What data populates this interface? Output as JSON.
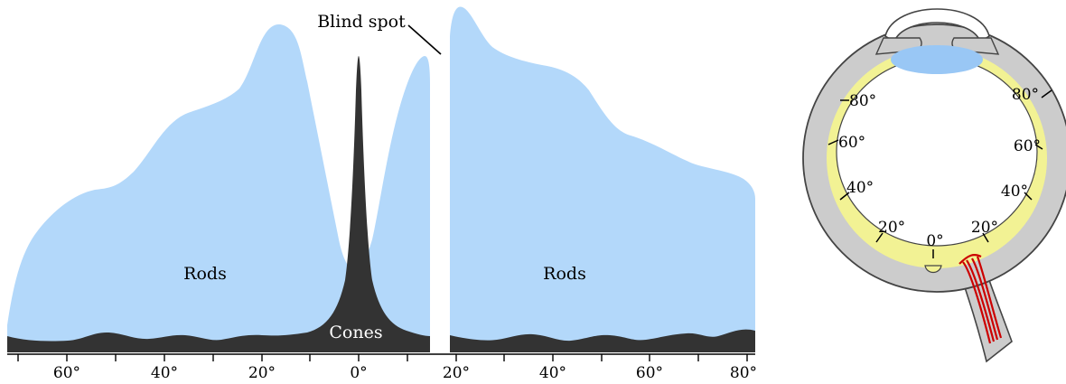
{
  "chart": {
    "rods_label_left": "Rods",
    "rods_label_right": "Rods",
    "cones_label": "Cones",
    "blind_spot_label": "Blind spot",
    "ticks": [
      "60°",
      "40°",
      "20°",
      "0°",
      "20°",
      "40°",
      "60°",
      "80°"
    ]
  },
  "eye": {
    "angles_left": [
      "80°",
      "60°",
      "40°",
      "20°"
    ],
    "center": "0°",
    "angles_right": [
      "80°",
      "60°",
      "40°",
      "20°"
    ]
  },
  "colors": {
    "rods": "#b3d8fa",
    "cones": "#333333",
    "retina": "#f2f294",
    "sclera": "#cccccc",
    "lens": "#99c7f5",
    "nerve": "#cc0000"
  }
}
